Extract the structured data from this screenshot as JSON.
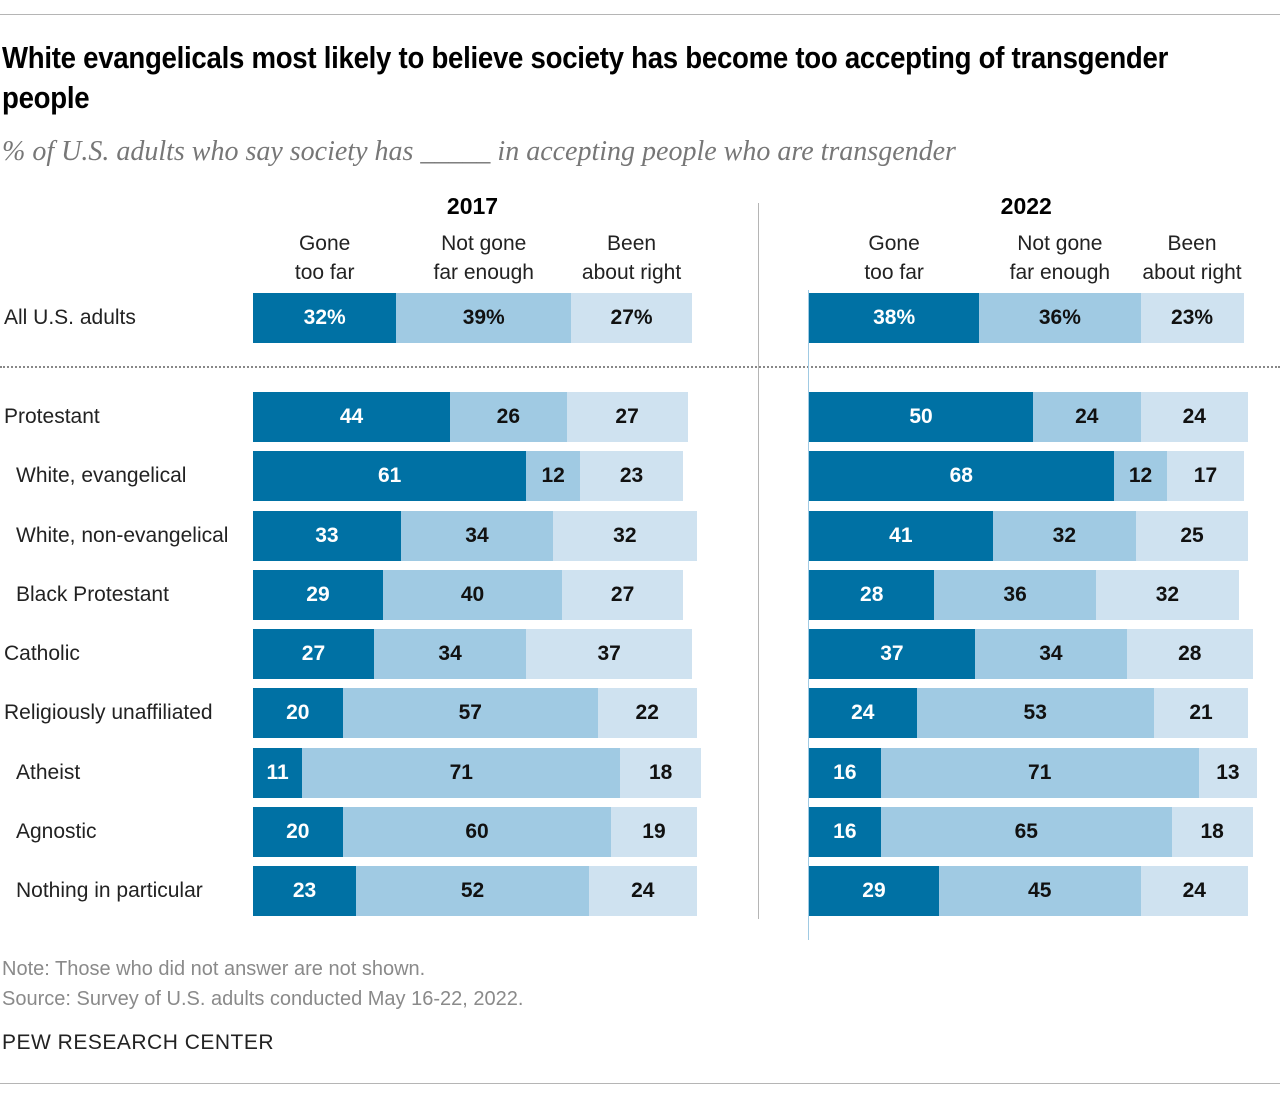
{
  "title": "White evangelicals most likely to believe society has become too accepting of transgender people",
  "subtitle": "% of U.S. adults who say society has _____ in accepting people who are transgender",
  "note": "Note: Those who did not answer are not shown.",
  "source": "Source: Survey of U.S. adults conducted May 16-22, 2022.",
  "brand": "PEW RESEARCH CENTER",
  "colors": {
    "gone_too_far": "#0071a4",
    "not_gone_far_enough": "#a0cae3",
    "been_about_right": "#cfe2f0"
  },
  "chart_data": {
    "type": "bar",
    "orientation": "horizontal",
    "stacked": true,
    "series_names": [
      "Gone too far",
      "Not gone far enough",
      "Been about right"
    ],
    "series_labels": [
      [
        "Gone",
        "too far"
      ],
      [
        "Not gone",
        "far enough"
      ],
      [
        "Been",
        "about right"
      ]
    ],
    "panels": [
      {
        "year": "2017",
        "rows": [
          {
            "label": "All U.S. adults",
            "indent": false,
            "values": [
              32,
              39,
              27
            ],
            "percent": true
          },
          {
            "label": "Protestant",
            "indent": false,
            "values": [
              44,
              26,
              27
            ]
          },
          {
            "label": "White, evangelical",
            "indent": true,
            "values": [
              61,
              12,
              23
            ]
          },
          {
            "label": "White, non-evangelical",
            "indent": true,
            "values": [
              33,
              34,
              32
            ]
          },
          {
            "label": "Black Protestant",
            "indent": true,
            "values": [
              29,
              40,
              27
            ]
          },
          {
            "label": "Catholic",
            "indent": false,
            "values": [
              27,
              34,
              37
            ]
          },
          {
            "label": "Religiously unaffiliated",
            "indent": false,
            "values": [
              20,
              57,
              22
            ]
          },
          {
            "label": "Atheist",
            "indent": true,
            "values": [
              11,
              71,
              18
            ]
          },
          {
            "label": "Agnostic",
            "indent": true,
            "values": [
              20,
              60,
              19
            ]
          },
          {
            "label": "Nothing in particular",
            "indent": true,
            "values": [
              23,
              52,
              24
            ]
          }
        ]
      },
      {
        "year": "2022",
        "rows": [
          {
            "label": "All U.S. adults",
            "values": [
              38,
              36,
              23
            ],
            "percent": true
          },
          {
            "label": "Protestant",
            "values": [
              50,
              24,
              24
            ]
          },
          {
            "label": "White, evangelical",
            "values": [
              68,
              12,
              17
            ]
          },
          {
            "label": "White, non-evangelical",
            "values": [
              41,
              32,
              25
            ]
          },
          {
            "label": "Black Protestant",
            "values": [
              28,
              36,
              32
            ]
          },
          {
            "label": "Catholic",
            "values": [
              37,
              34,
              28
            ]
          },
          {
            "label": "Religiously unaffiliated",
            "values": [
              24,
              53,
              21
            ]
          },
          {
            "label": "Atheist",
            "values": [
              16,
              71,
              13
            ]
          },
          {
            "label": "Agnostic",
            "values": [
              16,
              65,
              18
            ]
          },
          {
            "label": "Nothing in particular",
            "values": [
              29,
              45,
              24
            ]
          }
        ]
      }
    ]
  }
}
